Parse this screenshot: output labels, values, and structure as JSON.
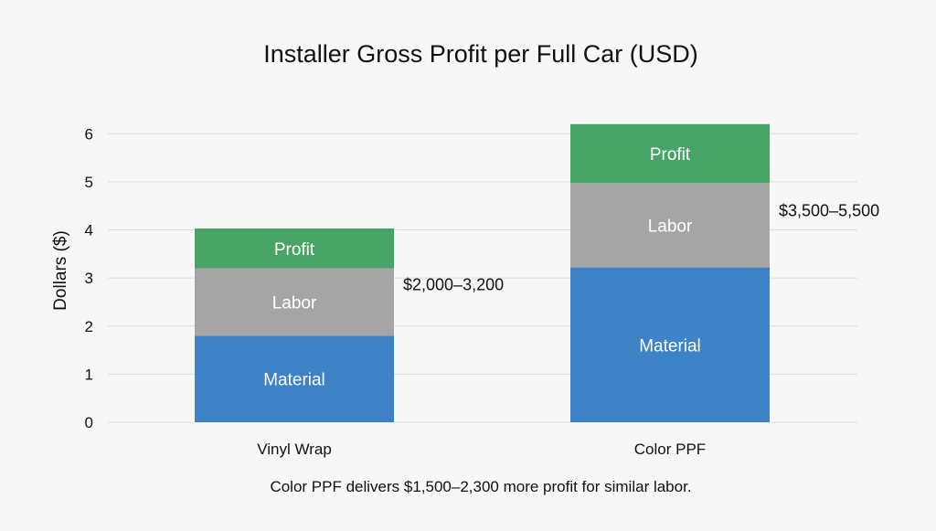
{
  "chart_data": {
    "type": "bar",
    "stacked": true,
    "title": "Installer Gross Profit per Full Car (USD)",
    "ylabel": "Dollars ($)",
    "xlabel": "",
    "ylim": [
      0,
      6.5
    ],
    "yticks": [
      0,
      1,
      2,
      3,
      4,
      5,
      6
    ],
    "grid": true,
    "categories": [
      "Vinyl Wrap",
      "Color PPF"
    ],
    "series": [
      {
        "name": "Material",
        "color": "#3d83c6",
        "values": [
          1.8,
          3.22
        ]
      },
      {
        "name": "Labor",
        "color": "#a5a5a5",
        "values": [
          1.4,
          1.76
        ]
      },
      {
        "name": "Profit",
        "color": "#47a466",
        "values": [
          0.83,
          1.22
        ]
      }
    ],
    "range_labels": [
      "$2,000–3,200",
      "$3,500–5,500"
    ],
    "caption": "Color PPF delivers $1,500–2,300 more profit for similar labor."
  }
}
